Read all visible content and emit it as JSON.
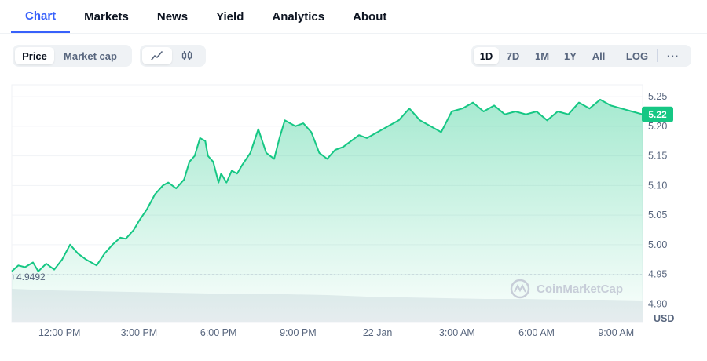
{
  "tabs": [
    {
      "label": "Chart",
      "active": true
    },
    {
      "label": "Markets",
      "active": false
    },
    {
      "label": "News",
      "active": false
    },
    {
      "label": "Yield",
      "active": false
    },
    {
      "label": "Analytics",
      "active": false
    },
    {
      "label": "About",
      "active": false
    }
  ],
  "toolbar": {
    "metric": [
      "Price",
      "Market cap"
    ],
    "metric_active": "Price",
    "chart_types": [
      "line-chart-icon",
      "candlestick-icon"
    ],
    "ranges": [
      "1D",
      "7D",
      "1M",
      "1Y",
      "All"
    ],
    "range_active": "1D",
    "log_label": "LOG",
    "more_label": "···"
  },
  "colors": {
    "line": "#16c784",
    "accent": "#3861fb",
    "badge": "#16c784"
  },
  "chart_data": {
    "type": "area",
    "ylim": [
      4.87,
      5.27
    ],
    "yticks": [
      "5.25",
      "5.20",
      "5.15",
      "5.10",
      "5.05",
      "5.00",
      "4.95",
      "4.90"
    ],
    "ytick_values": [
      5.25,
      5.2,
      5.15,
      5.1,
      5.05,
      5.0,
      4.95,
      4.9
    ],
    "y_unit": "USD",
    "xticks": [
      "12:00 PM",
      "3:00 PM",
      "6:00 PM",
      "9:00 PM",
      "22 Jan",
      "3:00 AM",
      "6:00 AM",
      "9:00 AM"
    ],
    "xtick_hours": [
      12,
      15,
      18,
      21,
      24,
      27,
      30,
      33
    ],
    "x_range_hours": [
      10.2,
      34.0
    ],
    "start_price": 4.9492,
    "start_label": "4.9492",
    "current_price": 5.22,
    "current_label": "5.22",
    "watermark": "CoinMarketCap",
    "series": [
      {
        "x": [
          10.2,
          10.45,
          10.7,
          11.0,
          11.2,
          11.5,
          11.8,
          12.1,
          12.4,
          12.7,
          13.0,
          13.4,
          13.7,
          14.0,
          14.3,
          14.5,
          14.8,
          15.0,
          15.3,
          15.6,
          15.9,
          16.1,
          16.4,
          16.7,
          16.9,
          17.1,
          17.3,
          17.5,
          17.6,
          17.8,
          18.0,
          18.1,
          18.3,
          18.5,
          18.7,
          18.9,
          19.2,
          19.5,
          19.8,
          20.1,
          20.3,
          20.5,
          20.9,
          21.2,
          21.5,
          21.8,
          22.1,
          22.4,
          22.7,
          23.0,
          23.3,
          23.6,
          24.0,
          24.4,
          24.8,
          25.2,
          25.6,
          26.0,
          26.4,
          26.8,
          27.2,
          27.6,
          28.0,
          28.4,
          28.8,
          29.2,
          29.6,
          30.0,
          30.4,
          30.8,
          31.2,
          31.6,
          32.0,
          32.4,
          32.8,
          33.2,
          33.6,
          34.0
        ],
        "y": [
          4.955,
          4.965,
          4.962,
          4.97,
          4.955,
          4.968,
          4.958,
          4.975,
          5.0,
          4.985,
          4.975,
          4.965,
          4.985,
          5.0,
          5.012,
          5.01,
          5.025,
          5.04,
          5.06,
          5.085,
          5.1,
          5.105,
          5.095,
          5.11,
          5.14,
          5.15,
          5.18,
          5.175,
          5.15,
          5.14,
          5.105,
          5.12,
          5.105,
          5.125,
          5.12,
          5.135,
          5.155,
          5.195,
          5.155,
          5.145,
          5.18,
          5.21,
          5.2,
          5.205,
          5.19,
          5.155,
          5.145,
          5.16,
          5.165,
          5.175,
          5.185,
          5.18,
          5.19,
          5.2,
          5.21,
          5.23,
          5.21,
          5.2,
          5.19,
          5.225,
          5.23,
          5.24,
          5.225,
          5.235,
          5.22,
          5.225,
          5.22,
          5.225,
          5.21,
          5.225,
          5.22,
          5.24,
          5.23,
          5.245,
          5.235,
          5.23,
          5.225,
          5.22
        ]
      }
    ]
  }
}
